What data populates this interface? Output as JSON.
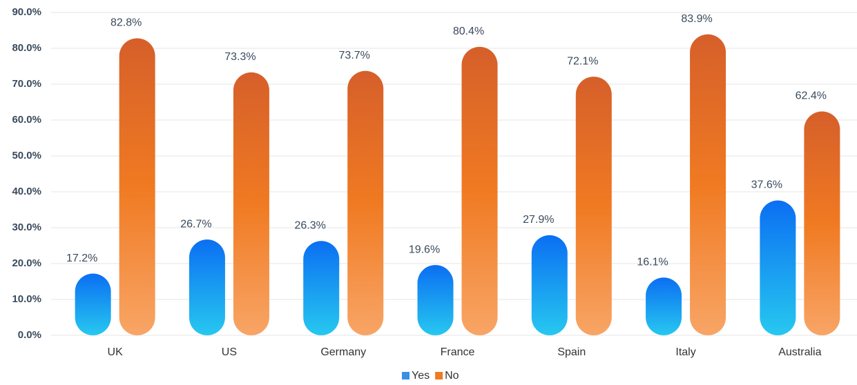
{
  "chart_data": {
    "type": "bar",
    "categories": [
      "UK",
      "US",
      "Germany",
      "France",
      "Spain",
      "Italy",
      "Australia"
    ],
    "series": [
      {
        "name": "Yes",
        "color": "#3a8ee6",
        "gradient": [
          "#0b6ff2",
          "#27c8f0"
        ],
        "values": [
          17.2,
          26.7,
          26.3,
          19.6,
          27.9,
          16.1,
          37.6
        ],
        "value_labels": [
          "17.2%",
          "26.7%",
          "26.3%",
          "19.6%",
          "27.9%",
          "16.1%",
          "37.6%"
        ]
      },
      {
        "name": "No",
        "color": "#f07a22",
        "gradient": [
          "#d65f2a",
          "#f07a22",
          "#f8a566"
        ],
        "values": [
          82.8,
          73.3,
          73.7,
          80.4,
          72.1,
          83.9,
          62.4
        ],
        "value_labels": [
          "82.8%",
          "73.3%",
          "73.7%",
          "80.4%",
          "72.1%",
          "83.9%",
          "62.4%"
        ]
      }
    ],
    "ylim": [
      0,
      90
    ],
    "yticks": [
      {
        "value": 0,
        "label": "0.0%"
      },
      {
        "value": 10,
        "label": "10.0%"
      },
      {
        "value": 20,
        "label": "20.0%"
      },
      {
        "value": 30,
        "label": "30.0%"
      },
      {
        "value": 40,
        "label": "40.0%"
      },
      {
        "value": 50,
        "label": "50.0%"
      },
      {
        "value": 60,
        "label": "60.0%"
      },
      {
        "value": 70,
        "label": "70.0%"
      },
      {
        "value": 80,
        "label": "80.0%"
      },
      {
        "value": 90,
        "label": "90.0%"
      }
    ],
    "grid": true,
    "legend": "bottom"
  }
}
